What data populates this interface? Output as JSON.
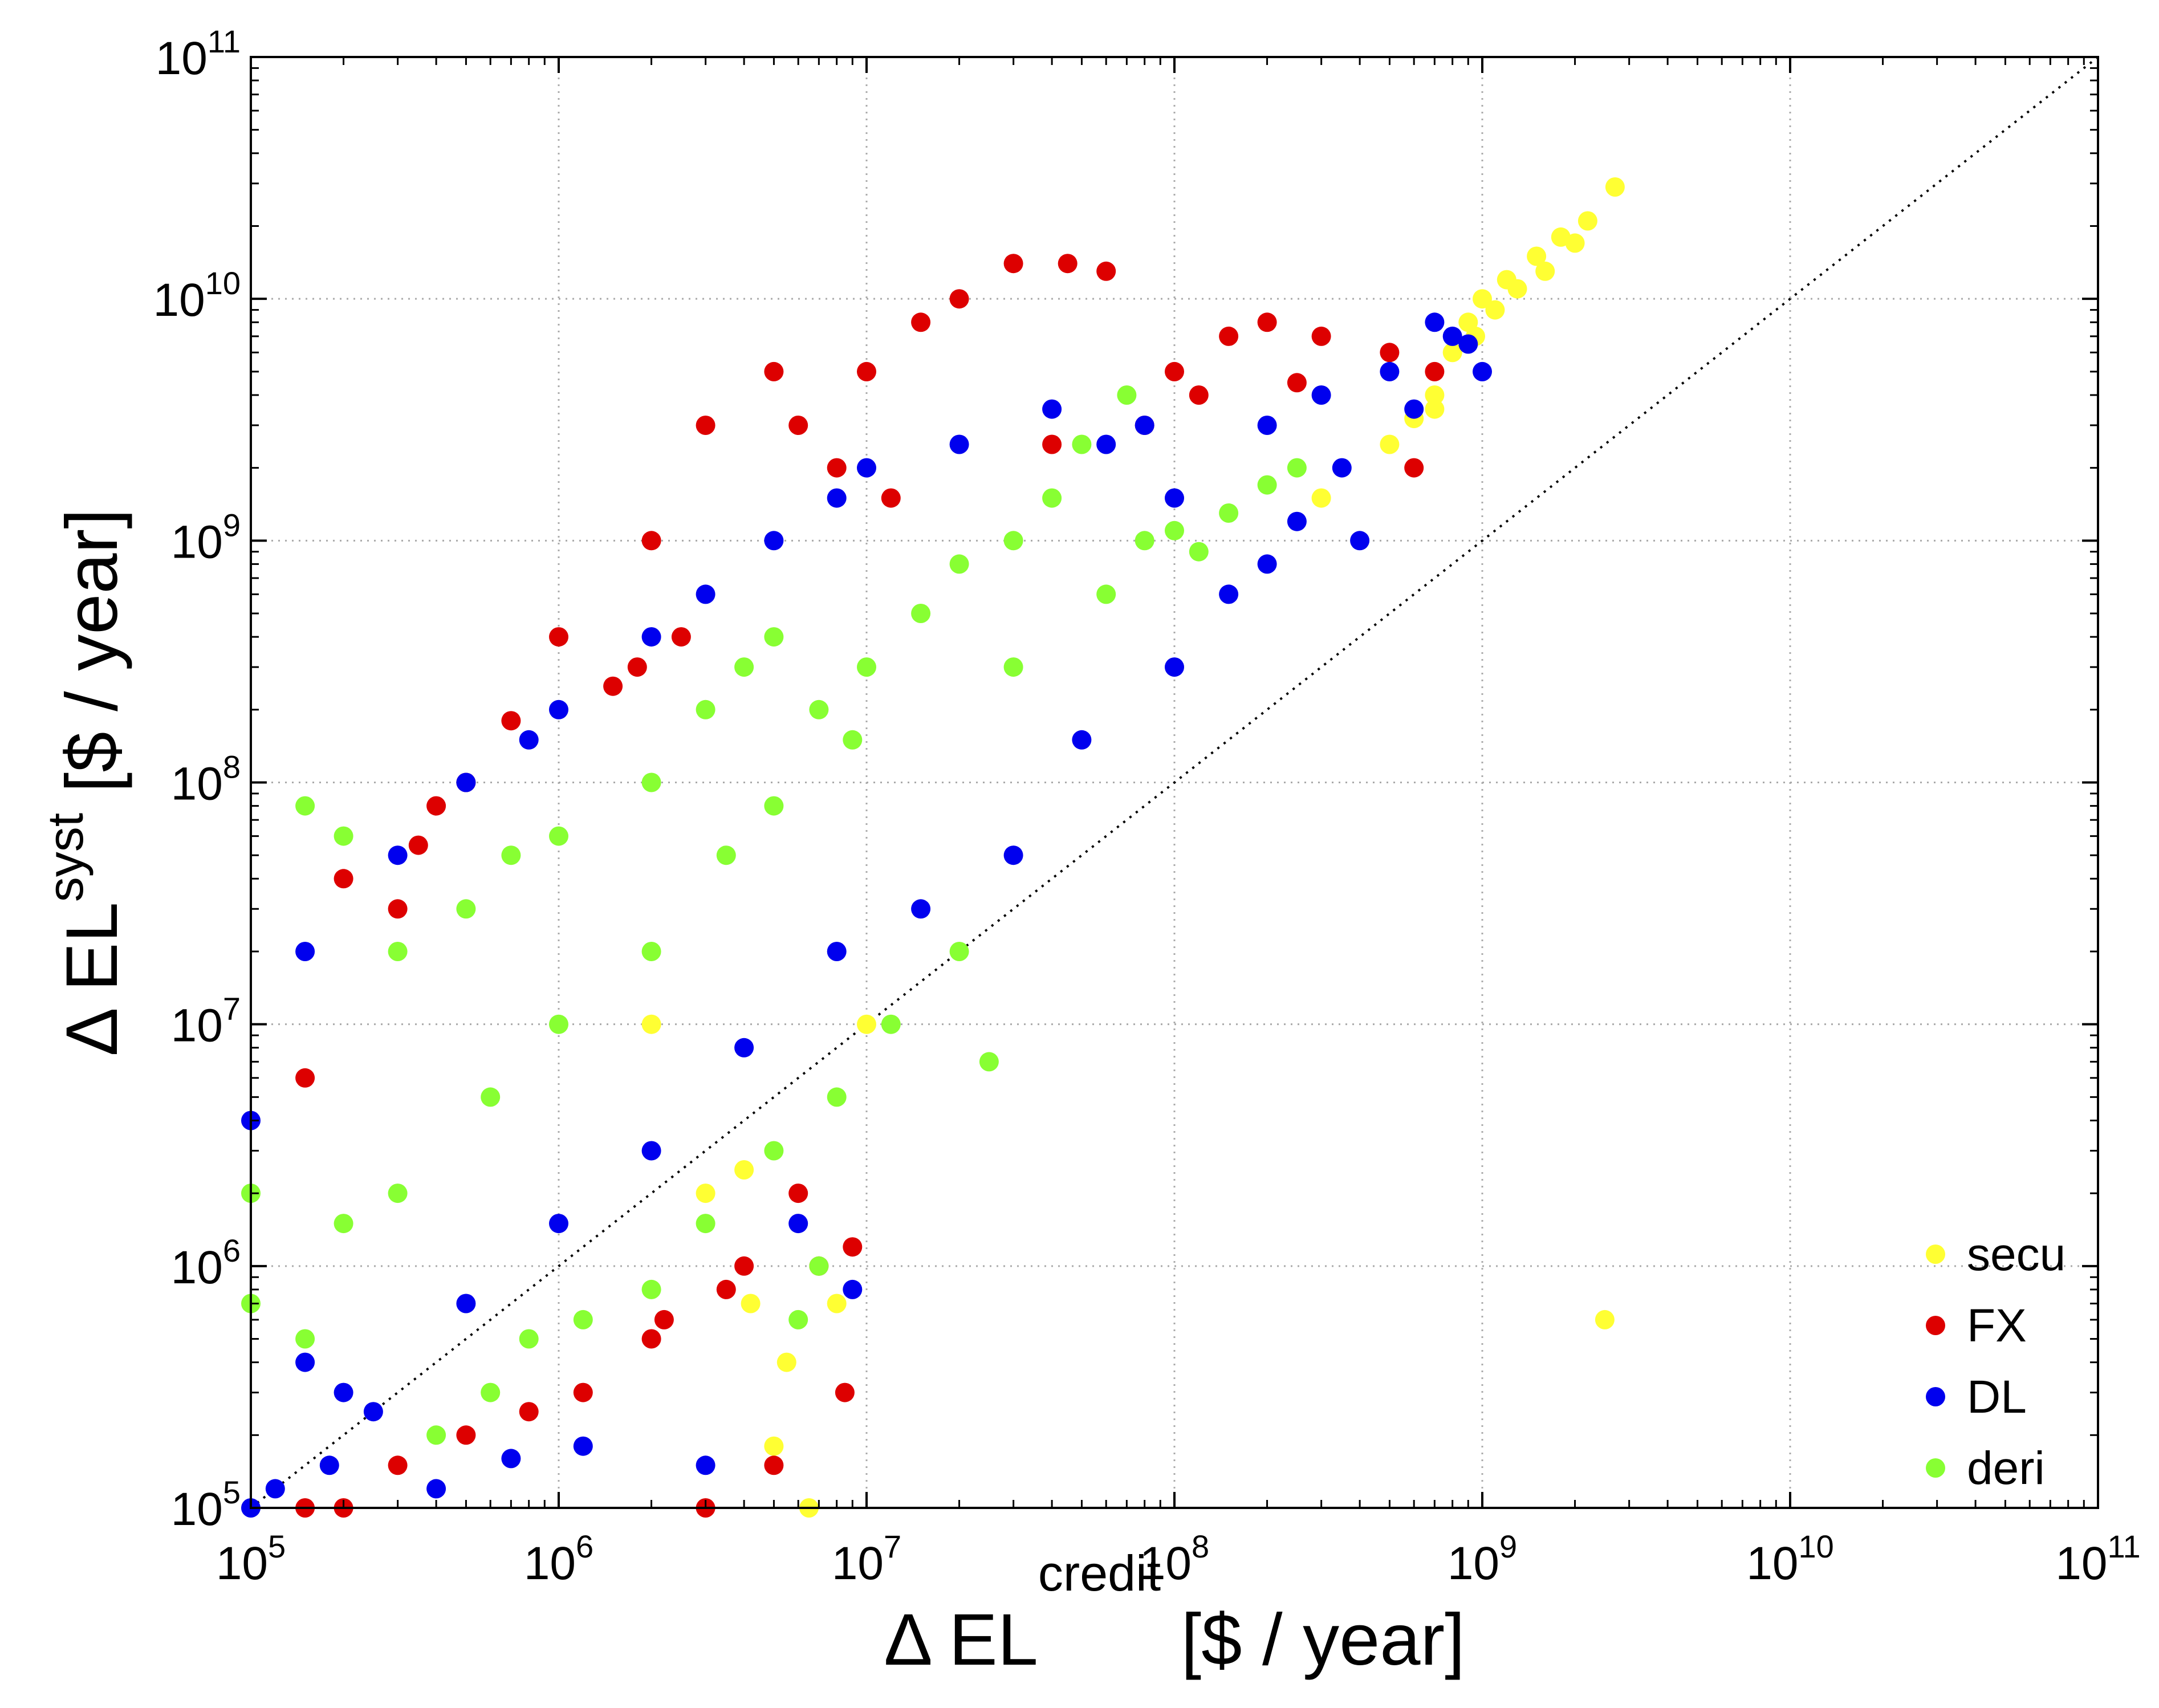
{
  "chart_data": {
    "type": "scatter",
    "title": "",
    "x_scale": "log",
    "y_scale": "log",
    "xlim": [
      100000,
      100000000000
    ],
    "ylim": [
      100000,
      100000000000
    ],
    "xlabel": {
      "prefix": "Δ EL",
      "superscript": "credit",
      "suffix": " [$ / year]"
    },
    "ylabel": {
      "prefix": "Δ EL",
      "superscript": "syst",
      "suffix": " [$ / year]"
    },
    "x_ticks": [
      {
        "value": 100000,
        "base": "10",
        "exp": "5"
      },
      {
        "value": 1000000,
        "base": "10",
        "exp": "6"
      },
      {
        "value": 10000000,
        "base": "10",
        "exp": "7"
      },
      {
        "value": 100000000,
        "base": "10",
        "exp": "8"
      },
      {
        "value": 1000000000,
        "base": "10",
        "exp": "9"
      },
      {
        "value": 10000000000,
        "base": "10",
        "exp": "10"
      },
      {
        "value": 100000000000,
        "base": "10",
        "exp": "11"
      }
    ],
    "y_ticks": [
      {
        "value": 100000,
        "base": "10",
        "exp": "5"
      },
      {
        "value": 1000000,
        "base": "10",
        "exp": "6"
      },
      {
        "value": 10000000,
        "base": "10",
        "exp": "7"
      },
      {
        "value": 100000000,
        "base": "10",
        "exp": "8"
      },
      {
        "value": 1000000000,
        "base": "10",
        "exp": "9"
      },
      {
        "value": 10000000000,
        "base": "10",
        "exp": "10"
      },
      {
        "value": 100000000000,
        "base": "10",
        "exp": "11"
      }
    ],
    "grid": true,
    "reference_line": "y = x (dotted diagonal)",
    "legend_position": "bottom-right",
    "series": [
      {
        "name": "secu",
        "color": "#ffff33",
        "points": [
          [
            10000000,
            10000000
          ],
          [
            2000000,
            10000000
          ],
          [
            4000000,
            2500000
          ],
          [
            3000000,
            2000000
          ],
          [
            8000000,
            700000
          ],
          [
            6500000,
            100000
          ],
          [
            5000000,
            180000
          ],
          [
            300000000,
            1500000000
          ],
          [
            500000000,
            2500000000
          ],
          [
            700000000,
            4000000000
          ],
          [
            800000000,
            6000000000
          ],
          [
            900000000,
            8000000000
          ],
          [
            1000000000,
            10000000000
          ],
          [
            1200000000,
            12000000000
          ],
          [
            1500000000,
            15000000000
          ],
          [
            1800000000,
            18000000000
          ],
          [
            2200000000,
            21000000000
          ],
          [
            2700000000,
            29000000000
          ],
          [
            950000000,
            7000000000
          ],
          [
            1100000000,
            9000000000
          ],
          [
            1300000000,
            11000000000
          ],
          [
            700000000,
            3500000000
          ],
          [
            600000000,
            3200000000
          ],
          [
            1600000000,
            13000000000
          ],
          [
            2000000000,
            17000000000
          ],
          [
            2500000000,
            600000
          ],
          [
            4200000,
            700000
          ],
          [
            5500000,
            400000
          ]
        ]
      },
      {
        "name": "FX",
        "color": "#dd0000",
        "points": [
          [
            150000,
            6000000
          ],
          [
            300000,
            30000000
          ],
          [
            500000,
            100000000
          ],
          [
            1000000,
            400000000
          ],
          [
            2000000,
            1000000000
          ],
          [
            3000000,
            3000000000
          ],
          [
            5000000,
            5000000000
          ],
          [
            6000000,
            3000000000
          ],
          [
            10000000,
            5000000000
          ],
          [
            15000000,
            8000000000
          ],
          [
            20000000,
            10000000000
          ],
          [
            30000000,
            14000000000
          ],
          [
            45000000,
            14000000000
          ],
          [
            60000000,
            13000000000
          ],
          [
            100000000,
            5000000000
          ],
          [
            150000000,
            7000000000
          ],
          [
            200000000,
            8000000000
          ],
          [
            300000000,
            7000000000
          ],
          [
            500000000,
            6000000000
          ],
          [
            700000000,
            5000000000
          ],
          [
            150000,
            100000
          ],
          [
            200000,
            100000
          ],
          [
            300000,
            150000
          ],
          [
            500000,
            200000
          ],
          [
            800000,
            250000
          ],
          [
            1200000,
            300000
          ],
          [
            2000000,
            500000
          ],
          [
            3000000,
            100000
          ],
          [
            4000000,
            1000000
          ],
          [
            6000000,
            2000000
          ],
          [
            8500000,
            300000
          ],
          [
            9000000,
            1200000
          ],
          [
            400000,
            80000000
          ],
          [
            1500000,
            250000000
          ],
          [
            2500000,
            400000000
          ],
          [
            8000000,
            2000000000
          ],
          [
            12000000,
            1500000000
          ],
          [
            40000000,
            2500000000
          ],
          [
            80000000,
            3000000000
          ],
          [
            120000000,
            4000000000
          ],
          [
            250000000,
            4500000000
          ],
          [
            600000000,
            2000000000
          ],
          [
            200000,
            40000000
          ],
          [
            350000,
            55000000
          ],
          [
            700000,
            180000000
          ],
          [
            1800000,
            300000000
          ],
          [
            2200000,
            600000
          ],
          [
            3500000,
            800000
          ],
          [
            5000000,
            150000
          ],
          [
            7000000,
            1000000
          ]
        ]
      },
      {
        "name": "DL",
        "color": "#0000ee",
        "points": [
          [
            100000,
            100000
          ],
          [
            150000,
            400000
          ],
          [
            200000,
            300000
          ],
          [
            100000,
            4000000
          ],
          [
            150000,
            20000000
          ],
          [
            300000,
            50000000
          ],
          [
            500000,
            100000000
          ],
          [
            800000,
            150000000
          ],
          [
            1000000,
            200000000
          ],
          [
            2000000,
            400000000
          ],
          [
            3000000,
            600000000
          ],
          [
            5000000,
            1000000000
          ],
          [
            8000000,
            1500000000
          ],
          [
            10000000,
            2000000000
          ],
          [
            20000000,
            2500000000
          ],
          [
            40000000,
            3500000000
          ],
          [
            60000000,
            2500000000
          ],
          [
            80000000,
            3000000000
          ],
          [
            100000000,
            1500000000
          ],
          [
            200000000,
            3000000000
          ],
          [
            300000000,
            4000000000
          ],
          [
            500000000,
            5000000000
          ],
          [
            700000000,
            8000000000
          ],
          [
            1000000000,
            5000000000
          ],
          [
            400000000,
            1000000000
          ],
          [
            200000000,
            800000000
          ],
          [
            100000000,
            300000000
          ],
          [
            50000000,
            150000000
          ],
          [
            30000000,
            50000000
          ],
          [
            15000000,
            30000000
          ],
          [
            8000000,
            20000000
          ],
          [
            4000000,
            8000000
          ],
          [
            2000000,
            3000000
          ],
          [
            1000000,
            1500000
          ],
          [
            500000,
            700000
          ],
          [
            250000,
            250000
          ],
          [
            180000,
            150000
          ],
          [
            120000,
            120000
          ],
          [
            400000,
            120000
          ],
          [
            700000,
            160000
          ],
          [
            1200000,
            180000
          ],
          [
            3000000,
            150000
          ],
          [
            9000000,
            800000
          ],
          [
            6000000,
            1500000
          ],
          [
            150000000,
            600000000
          ],
          [
            250000000,
            1200000000
          ],
          [
            350000000,
            2000000000
          ],
          [
            600000000,
            3500000000
          ],
          [
            800000000,
            7000000000
          ],
          [
            900000000,
            6500000000
          ]
        ]
      },
      {
        "name": "deri",
        "color": "#88ff33",
        "points": [
          [
            100000,
            700000
          ],
          [
            100000,
            2000000
          ],
          [
            150000,
            500000
          ],
          [
            200000,
            1500000
          ],
          [
            300000,
            2000000
          ],
          [
            200000,
            60000000
          ],
          [
            150000,
            80000000
          ],
          [
            300000,
            20000000
          ],
          [
            500000,
            30000000
          ],
          [
            700000,
            50000000
          ],
          [
            1000000,
            60000000
          ],
          [
            2000000,
            100000000
          ],
          [
            3000000,
            200000000
          ],
          [
            4000000,
            300000000
          ],
          [
            5000000,
            400000000
          ],
          [
            7000000,
            200000000
          ],
          [
            10000000,
            300000000
          ],
          [
            15000000,
            500000000
          ],
          [
            20000000,
            800000000
          ],
          [
            30000000,
            1000000000
          ],
          [
            40000000,
            1500000000
          ],
          [
            50000000,
            2500000000
          ],
          [
            70000000,
            4000000000
          ],
          [
            80000000,
            1000000000
          ],
          [
            100000000,
            1100000000
          ],
          [
            150000000,
            1300000000
          ],
          [
            200000000,
            1700000000
          ],
          [
            250000000,
            2000000000
          ],
          [
            400000,
            200000
          ],
          [
            600000,
            300000
          ],
          [
            800000,
            500000
          ],
          [
            1200000,
            600000
          ],
          [
            2000000,
            800000
          ],
          [
            3000000,
            1500000
          ],
          [
            5000000,
            3000000
          ],
          [
            8000000,
            5000000
          ],
          [
            12000000,
            10000000
          ],
          [
            20000000,
            20000000
          ],
          [
            25000000,
            7000000
          ],
          [
            7000000,
            1000000
          ],
          [
            6000000,
            600000
          ],
          [
            600000,
            5000000
          ],
          [
            1000000,
            10000000
          ],
          [
            2000000,
            20000000
          ],
          [
            3500000,
            50000000
          ],
          [
            5000000,
            80000000
          ],
          [
            9000000,
            150000000
          ],
          [
            30000000,
            300000000
          ],
          [
            60000000,
            600000000
          ],
          [
            120000000,
            900000000
          ]
        ]
      }
    ]
  }
}
